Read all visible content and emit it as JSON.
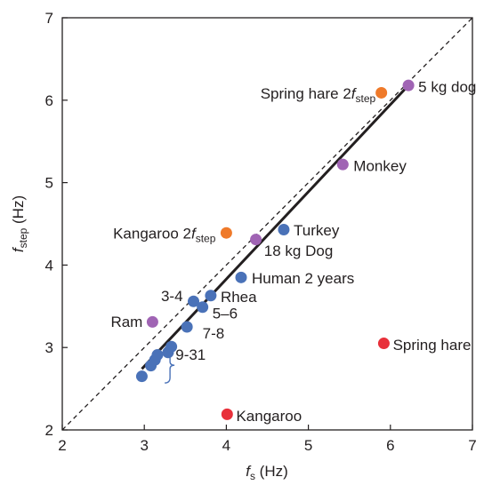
{
  "chart_data": {
    "type": "scatter",
    "xlabel": {
      "main": "f",
      "sub": "s",
      "unit": " (Hz)"
    },
    "ylabel": {
      "main": "f",
      "sub": "step",
      "unit": " (Hz)"
    },
    "xlim": [
      2,
      7
    ],
    "ylim": [
      2,
      7
    ],
    "xticks": [
      "2",
      "3",
      "4",
      "5",
      "6",
      "7"
    ],
    "yticks": [
      "2",
      "3",
      "4",
      "5",
      "6",
      "7"
    ],
    "grid": false,
    "legend": "none",
    "colors": {
      "blue": "#4a72b8",
      "purple": "#a064b4",
      "orange": "#ef7a2a",
      "red": "#e8303a",
      "axis": "#231f20"
    },
    "points": [
      {
        "x": 2.97,
        "y": 2.65,
        "color": "blue"
      },
      {
        "x": 3.08,
        "y": 2.78,
        "color": "blue"
      },
      {
        "x": 3.13,
        "y": 2.85,
        "color": "blue"
      },
      {
        "x": 3.16,
        "y": 2.91,
        "color": "blue"
      },
      {
        "x": 3.29,
        "y": 2.94,
        "color": "blue"
      },
      {
        "x": 3.33,
        "y": 3.01,
        "color": "blue"
      },
      {
        "x": 3.52,
        "y": 3.25,
        "color": "blue"
      },
      {
        "x": 3.6,
        "y": 3.56,
        "color": "blue"
      },
      {
        "x": 3.71,
        "y": 3.49,
        "color": "blue"
      },
      {
        "x": 3.81,
        "y": 3.63,
        "color": "blue"
      },
      {
        "x": 4.18,
        "y": 3.85,
        "color": "blue"
      },
      {
        "x": 4.7,
        "y": 4.43,
        "color": "blue"
      },
      {
        "x": 3.1,
        "y": 3.31,
        "color": "purple"
      },
      {
        "x": 4.36,
        "y": 4.31,
        "color": "purple"
      },
      {
        "x": 5.42,
        "y": 5.22,
        "color": "purple"
      },
      {
        "x": 6.22,
        "y": 6.18,
        "color": "purple"
      },
      {
        "x": 4.0,
        "y": 4.39,
        "color": "orange"
      },
      {
        "x": 5.89,
        "y": 6.09,
        "color": "orange"
      },
      {
        "x": 4.01,
        "y": 2.19,
        "color": "red"
      },
      {
        "x": 5.92,
        "y": 3.05,
        "color": "red"
      }
    ],
    "fit_line": {
      "x": [
        2.97,
        6.22
      ],
      "y": [
        2.74,
        6.18
      ]
    },
    "identity_line": {
      "x": [
        2.0,
        7.0
      ],
      "y": [
        2.0,
        7.0
      ]
    },
    "annotations": [
      {
        "text": "Spring hare 2f",
        "sub": "step",
        "x": 5.82,
        "y": 6.02,
        "anchor": "end"
      },
      {
        "text": "5 kg dog",
        "x": 6.34,
        "y": 6.1,
        "anchor": "start"
      },
      {
        "text": "Monkey",
        "x": 5.55,
        "y": 5.14,
        "anchor": "start"
      },
      {
        "text": "Kangaroo 2f",
        "sub": "step",
        "x": 3.87,
        "y": 4.32,
        "anchor": "end"
      },
      {
        "text": "Turkey",
        "x": 4.82,
        "y": 4.36,
        "anchor": "start"
      },
      {
        "text": "18 kg Dog",
        "x": 4.46,
        "y": 4.11,
        "anchor": "start"
      },
      {
        "text": "Human 2 years",
        "x": 4.31,
        "y": 3.78,
        "anchor": "start"
      },
      {
        "text": "3-4",
        "x": 3.47,
        "y": 3.56,
        "anchor": "end"
      },
      {
        "text": "Rhea",
        "x": 3.93,
        "y": 3.55,
        "anchor": "start"
      },
      {
        "text": "5–6",
        "x": 3.83,
        "y": 3.35,
        "anchor": "start"
      },
      {
        "text": "Ram",
        "x": 2.98,
        "y": 3.25,
        "anchor": "end"
      },
      {
        "text": "7-8",
        "x": 3.71,
        "y": 3.11,
        "anchor": "start"
      },
      {
        "text": "9-31",
        "x": 3.38,
        "y": 2.85,
        "anchor": "start"
      },
      {
        "text": "Spring hare",
        "x": 6.03,
        "y": 2.97,
        "anchor": "start"
      },
      {
        "text": "Kangaroo",
        "x": 4.12,
        "y": 2.11,
        "anchor": "start"
      }
    ],
    "brace": {
      "x": 3.27,
      "y_top": 3.0,
      "y_bottom": 2.57
    }
  }
}
